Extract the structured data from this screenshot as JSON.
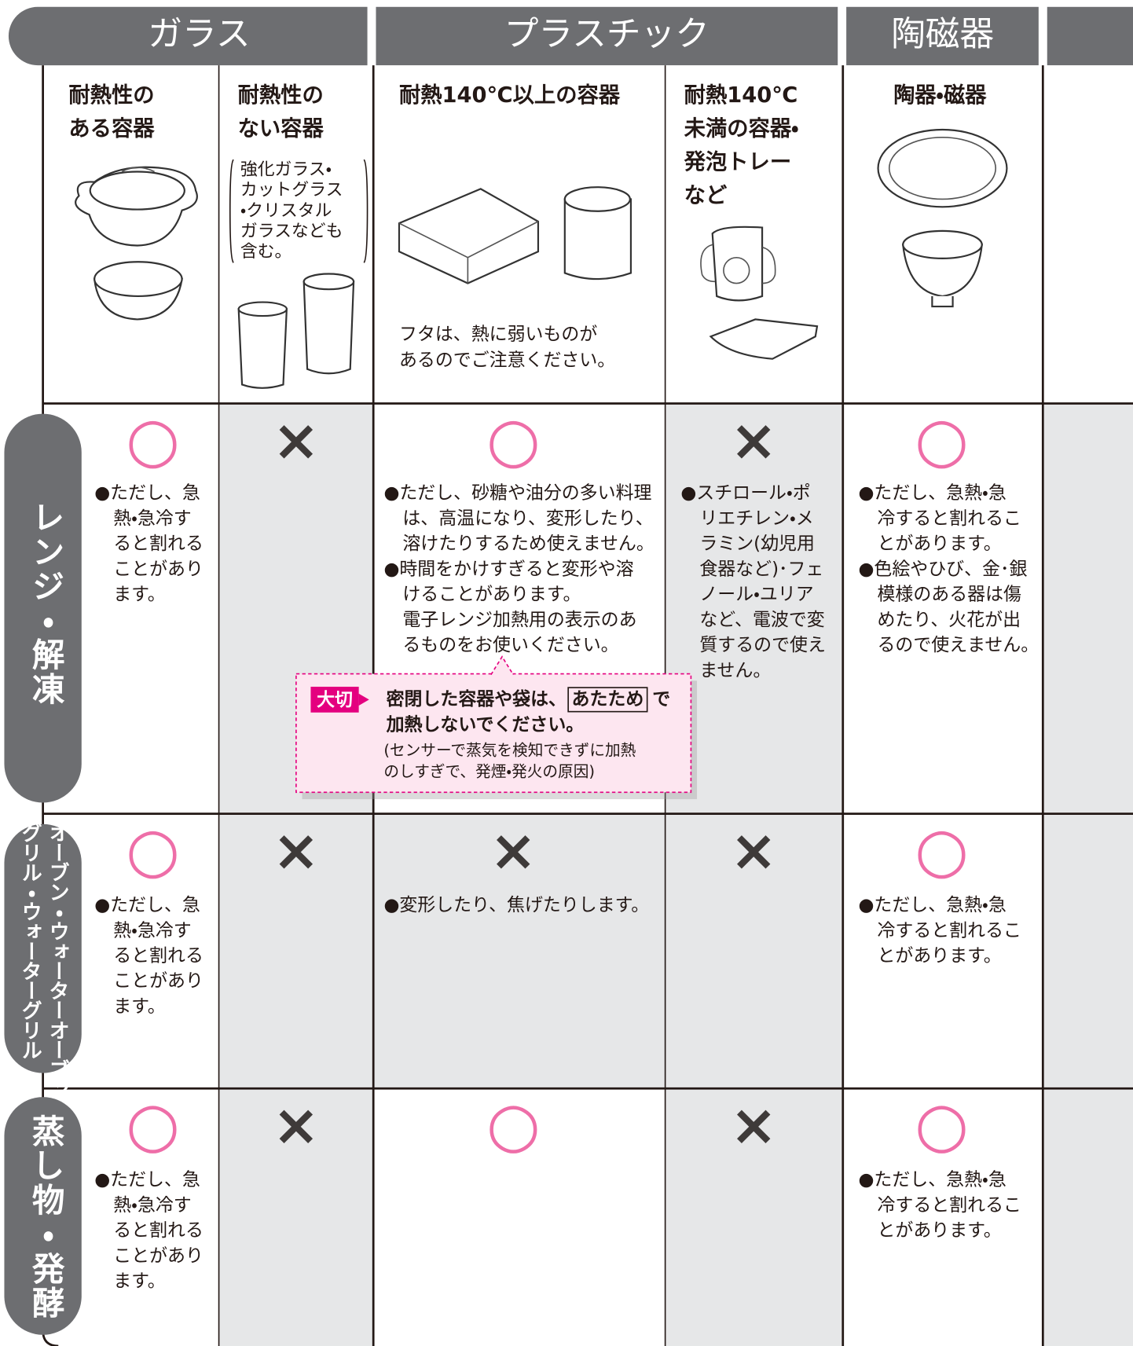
{
  "header": {
    "groups": [
      "ガラス",
      "プラスチック",
      "陶磁器"
    ]
  },
  "columns": [
    {
      "label": [
        "耐熱性の",
        "ある容器"
      ]
    },
    {
      "label": [
        "耐熱性の",
        "ない容器"
      ],
      "note": [
        "強化ガラス・",
        "カットグラス",
        "・クリスタル",
        "ガラスなども",
        "含む。"
      ]
    },
    {
      "label": [
        "耐熱140℃以上の容器"
      ],
      "note": [
        "フタは、熱に弱いものが",
        "あるのでご注意ください。"
      ]
    },
    {
      "label": [
        "耐熱140℃",
        "未満の容器・",
        "発泡トレー",
        "など"
      ]
    },
    {
      "label": [
        "陶器・磁器"
      ]
    }
  ],
  "rows": [
    {
      "label": [
        "レンジ・解凍"
      ],
      "cells": [
        {
          "mark": "○",
          "notes": [
            [
              "●ただし、急",
              "熱・急冷す",
              "ると割れる",
              "ことがあり",
              "ます。"
            ]
          ]
        },
        {
          "mark": "×"
        },
        {
          "mark": "○",
          "notes": [
            [
              "●ただし、砂糖や油分の多い料理",
              "は、高温になり、変形したり、",
              "溶けたりするため使えません。"
            ],
            [
              "●時間をかけすぎると変形や溶",
              "けることがあります。",
              "電子レンジ加熱用の表示のあ",
              "るものをお使いください。"
            ]
          ]
        },
        {
          "mark": "×",
          "notes": [
            [
              "●スチロール・ポ",
              "リエチレン・メ",
              "ラミン(幼児用",
              "食器など)･フェ",
              "ノール・ユリア",
              "など、電波で変",
              "質するので使え",
              "ません。"
            ]
          ]
        },
        {
          "mark": "○",
          "notes": [
            [
              "●ただし、急熱・急",
              "冷すると割れるこ",
              "とがあります。"
            ],
            [
              "●色絵やひび、金･銀",
              "模様のある器は傷",
              "めたり、火花が出",
              "るので使えません。"
            ]
          ]
        }
      ]
    },
    {
      "label": [
        "オーブン・ウォーターオーブン",
        "グリル・ウォーターグリル"
      ],
      "cells": [
        {
          "mark": "○",
          "notes": [
            [
              "●ただし、急",
              "熱・急冷す",
              "ると割れる",
              "ことがあり",
              "ます。"
            ]
          ]
        },
        {
          "mark": "×"
        },
        {
          "mark": "×",
          "notes": [
            [
              "●変形したり、焦げたりします。"
            ]
          ]
        },
        {
          "mark": "×"
        },
        {
          "mark": "○",
          "notes": [
            [
              "●ただし、急熱・急",
              "冷すると割れるこ",
              "とがあります。"
            ]
          ]
        }
      ]
    },
    {
      "label": [
        "蒸し物・発酵"
      ],
      "cells": [
        {
          "mark": "○",
          "notes": [
            [
              "●ただし、急",
              "熱・急冷す",
              "ると割れる",
              "ことがあり",
              "ます。"
            ]
          ]
        },
        {
          "mark": "×"
        },
        {
          "mark": "○"
        },
        {
          "mark": "×"
        },
        {
          "mark": "○",
          "notes": [
            [
              "●ただし、急熱・急",
              "冷すると割れるこ",
              "とがあります。"
            ]
          ]
        }
      ]
    }
  ],
  "callout": {
    "tag": "大切",
    "line1": [
      "密閉した容器や袋は、",
      "あたため",
      "で"
    ],
    "line2": "加熱しないでください。",
    "detail": [
      "(センサーで蒸気を検知できずに加熱",
      "のしすぎで、発煙・発火の原因)"
    ]
  }
}
